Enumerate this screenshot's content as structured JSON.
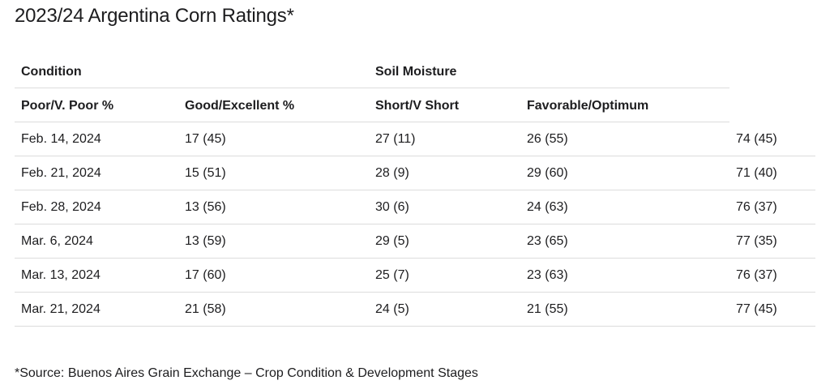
{
  "title": "2023/24 Argentina Corn Ratings*",
  "table": {
    "group_headers": [
      "Condition",
      "Soil Moisture"
    ],
    "column_headers": [
      "Poor/V. Poor %",
      "Good/Excellent %",
      "Short/V Short",
      "Favorable/Optimum"
    ],
    "rows": [
      [
        "Feb. 14, 2024",
        "17 (45)",
        "27 (11)",
        "26 (55)",
        "74 (45)"
      ],
      [
        "Feb. 21, 2024",
        "15 (51)",
        "28 (9)",
        "29 (60)",
        "71 (40)"
      ],
      [
        "Feb. 28, 2024",
        "13 (56)",
        "30 (6)",
        "24 (63)",
        "76 (37)"
      ],
      [
        "Mar. 6, 2024",
        "13 (59)",
        "29 (5)",
        "23 (65)",
        "77 (35)"
      ],
      [
        "Mar. 13, 2024",
        "17 (60)",
        "25 (7)",
        "23 (63)",
        "76 (37)"
      ],
      [
        "Mar. 21, 2024",
        "21 (58)",
        "24 (5)",
        "21 (55)",
        "77 (45)"
      ]
    ]
  },
  "footnote": "*Source: Buenos Aires Grain Exchange – Crop Condition & Development Stages"
}
